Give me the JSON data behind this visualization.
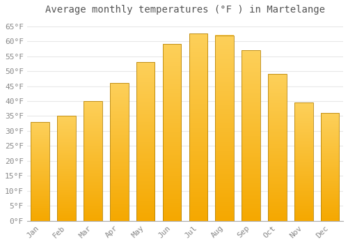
{
  "title": "Average monthly temperatures (°F ) in Martelange",
  "months": [
    "Jan",
    "Feb",
    "Mar",
    "Apr",
    "May",
    "Jun",
    "Jul",
    "Aug",
    "Sep",
    "Oct",
    "Nov",
    "Dec"
  ],
  "values": [
    33,
    35,
    40,
    46,
    53,
    59,
    62.5,
    62,
    57,
    49,
    39.5,
    36
  ],
  "bar_color_top": "#FDD05A",
  "bar_color_bottom": "#F5A800",
  "bar_edge_color": "#B8860B",
  "background_color": "#FFFFFF",
  "plot_bg_color": "#FFFFFF",
  "ylim": [
    0,
    67
  ],
  "yticks": [
    0,
    5,
    10,
    15,
    20,
    25,
    30,
    35,
    40,
    45,
    50,
    55,
    60,
    65
  ],
  "grid_color": "#E8E8E8",
  "title_fontsize": 10,
  "tick_fontsize": 8,
  "font_family": "monospace"
}
